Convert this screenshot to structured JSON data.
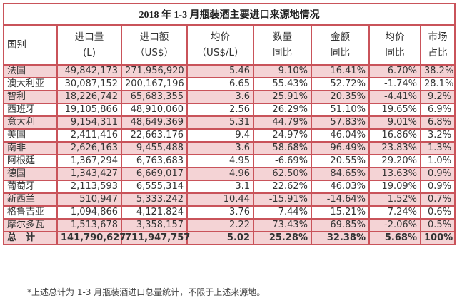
{
  "title": "2018 年 1-3 月瓶装酒主要进口来源地情况",
  "headers": [
    [
      "国别"
    ],
    [
      "进口量",
      "(L)"
    ],
    [
      "进口额",
      "（US$）"
    ],
    [
      "均价",
      "（US$/L）"
    ],
    [
      "数量",
      "同比"
    ],
    [
      "金额",
      "同比"
    ],
    [
      "均价",
      "同比"
    ],
    [
      "市场",
      "占比"
    ]
  ],
  "rows": [
    [
      "法国",
      "49,842,173",
      "271,956,920",
      "5.46",
      "9.10%",
      "16.41%",
      "6.70%",
      "38.2%"
    ],
    [
      "澳大利亚",
      "30,087,152",
      "200,167,196",
      "6.65",
      "55.43%",
      "52.72%",
      "-1.74%",
      "28.1%"
    ],
    [
      "智利",
      "18,226,742",
      "65,683,355",
      "3.6",
      "25.91%",
      "20.35%",
      "-4.41%",
      "9.2%"
    ],
    [
      "西班牙",
      "19,105,866",
      "48,910,060",
      "2.56",
      "26.29%",
      "51.10%",
      "19.65%",
      "6.9%"
    ],
    [
      "意大利",
      "9,154,311",
      "48,649,369",
      "5.31",
      "44.79%",
      "57.83%",
      "9.01%",
      "6.8%"
    ],
    [
      "美国",
      "2,411,416",
      "22,663,176",
      "9.4",
      "24.97%",
      "46.04%",
      "16.86%",
      "3.2%"
    ],
    [
      "南非",
      "2,626,163",
      "9,455,488",
      "3.6",
      "58.68%",
      "96.49%",
      "23.83%",
      "1.3%"
    ],
    [
      "阿根廷",
      "1,367,294",
      "6,763,683",
      "4.95",
      "-6.69%",
      "20.55%",
      "29.20%",
      "1.0%"
    ],
    [
      "德国",
      "1,343,427",
      "6,669,017",
      "4.96",
      "62.50%",
      "84.65%",
      "13.63%",
      "0.9%"
    ],
    [
      "葡萄牙",
      "2,113,593",
      "6,555,314",
      "3.1",
      "22.62%",
      "46.03%",
      "19.09%",
      "0.9%"
    ],
    [
      "新西兰",
      "510,947",
      "5,333,242",
      "10.44",
      "-15.91%",
      "-14.64%",
      "1.52%",
      "0.7%"
    ],
    [
      "格鲁吉亚",
      "1,094,866",
      "4,121,824",
      "3.76",
      "7.44%",
      "15.21%",
      "7.24%",
      "0.6%"
    ],
    [
      "摩尔多瓦",
      "1,513,678",
      "3,358,157",
      "2.22",
      "73.43%",
      "69.85%",
      "-2.06%",
      "0.5%"
    ]
  ],
  "total": [
    "总　计",
    "141,790,627",
    "711,947,757",
    "5.02",
    "25.28%",
    "32.38%",
    "5.68%",
    "100%"
  ],
  "footnote": "*上述总计为 1-3 月瓶装酒进口总量统计，不限于上述来源地。",
  "colors": {
    "border": "#c9535a",
    "pink_row": "#f4d3d5"
  }
}
